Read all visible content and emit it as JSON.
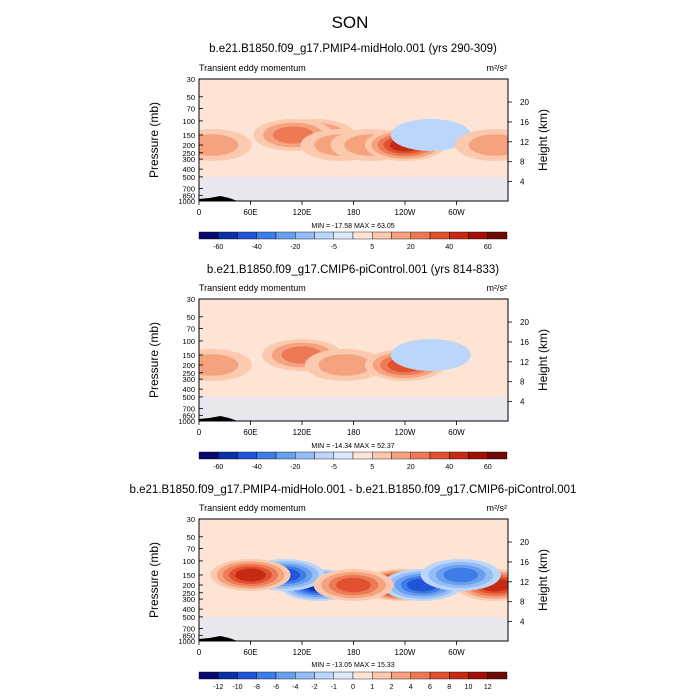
{
  "page_title": "SON",
  "chart_data": [
    {
      "type": "heatmap",
      "title": "b.e21.B1850.f09_g17.PMIP4-midHolo.001 (yrs 290-309)",
      "subtitle_left": "Transient eddy momentum",
      "units": "m²/s²",
      "ylabel": "Pressure (mb)",
      "ylabel_right": "Height (km)",
      "x_ticks": [
        "0",
        "60E",
        "120E",
        "180",
        "120W",
        "60W"
      ],
      "y_ticks": [
        "30",
        "50",
        "70",
        "100",
        "150",
        "200",
        "250",
        "300",
        "400",
        "500",
        "700",
        "850",
        "1000"
      ],
      "y_ticks_right": [
        "20",
        "16",
        "12",
        "8",
        "4"
      ],
      "min_max_label": "MIN = -17.58  MAX =  63.05",
      "colorbar_labels": [
        "-60",
        "-40",
        "-20",
        "-5",
        "5",
        "20",
        "40",
        "60"
      ],
      "levels": [
        -70,
        -60,
        -50,
        -40,
        -30,
        -20,
        -10,
        -5,
        0,
        5,
        10,
        20,
        30,
        40,
        50,
        60,
        70
      ],
      "features": [
        {
          "lon": 135,
          "p": 150,
          "value": 28
        },
        {
          "lon": 110,
          "p": 150,
          "value": 22
        },
        {
          "lon": 165,
          "p": 200,
          "value": 18
        },
        {
          "lon": 200,
          "p": 200,
          "value": 20
        },
        {
          "lon": 240,
          "p": 200,
          "value": 40
        },
        {
          "lon": 15,
          "p": 200,
          "value": 18
        },
        {
          "lon": 270,
          "p": 150,
          "value": -12
        },
        {
          "lon": 345,
          "p": 200,
          "value": 15
        }
      ]
    },
    {
      "type": "heatmap",
      "title": "b.e21.B1850.f09_g17.CMIP6-piControl.001 (yrs 814-833)",
      "subtitle_left": "Transient eddy momentum",
      "units": "m²/s²",
      "ylabel": "Pressure (mb)",
      "ylabel_right": "Height (km)",
      "x_ticks": [
        "0",
        "60E",
        "120E",
        "180",
        "120W",
        "60W"
      ],
      "y_ticks": [
        "30",
        "50",
        "70",
        "100",
        "150",
        "200",
        "250",
        "300",
        "400",
        "500",
        "700",
        "850",
        "1000"
      ],
      "y_ticks_right": [
        "20",
        "16",
        "12",
        "8",
        "4"
      ],
      "min_max_label": "MIN = -14.34  MAX =  52.37",
      "colorbar_labels": [
        "-60",
        "-40",
        "-20",
        "-5",
        "5",
        "20",
        "40",
        "60"
      ],
      "levels": [
        -70,
        -60,
        -50,
        -40,
        -30,
        -20,
        -10,
        -5,
        0,
        5,
        10,
        20,
        30,
        40,
        50,
        60,
        70
      ],
      "features": [
        {
          "lon": 120,
          "p": 150,
          "value": 30
        },
        {
          "lon": 170,
          "p": 200,
          "value": 20
        },
        {
          "lon": 240,
          "p": 200,
          "value": 32
        },
        {
          "lon": 15,
          "p": 200,
          "value": 15
        },
        {
          "lon": 270,
          "p": 150,
          "value": -10
        }
      ]
    },
    {
      "type": "heatmap",
      "title": "b.e21.B1850.f09_g17.PMIP4-midHolo.001 - b.e21.B1850.f09_g17.CMIP6-piControl.001",
      "subtitle_left": "Transient eddy momentum",
      "units": "m²/s²",
      "ylabel": "Pressure (mb)",
      "ylabel_right": "Height (km)",
      "x_ticks": [
        "0",
        "60E",
        "120E",
        "180",
        "120W",
        "60W"
      ],
      "y_ticks": [
        "30",
        "50",
        "70",
        "100",
        "150",
        "200",
        "250",
        "300",
        "400",
        "500",
        "700",
        "850",
        "1000"
      ],
      "y_ticks_right": [
        "20",
        "16",
        "12",
        "8",
        "4"
      ],
      "min_max_label": "MIN = -13.05  MAX =  15.33",
      "colorbar_labels": [
        "-12",
        "-10",
        "-8",
        "-6",
        "-4",
        "-2",
        "-1",
        "0",
        "1",
        "2",
        "4",
        "6",
        "8",
        "10",
        "12"
      ],
      "levels": [
        -14,
        -12,
        -10,
        -8,
        -6,
        -4,
        -2,
        -1,
        0,
        1,
        2,
        4,
        6,
        8,
        10,
        12,
        14
      ],
      "features": [
        {
          "lon": 235,
          "p": 200,
          "value": 14
        },
        {
          "lon": 140,
          "p": 200,
          "value": -11
        },
        {
          "lon": 100,
          "p": 150,
          "value": -8
        },
        {
          "lon": 260,
          "p": 200,
          "value": -9
        },
        {
          "lon": 60,
          "p": 150,
          "value": 8
        },
        {
          "lon": 180,
          "p": 200,
          "value": 7
        },
        {
          "lon": 345,
          "p": 200,
          "value": 8
        },
        {
          "lon": 305,
          "p": 150,
          "value": -7
        }
      ]
    }
  ]
}
